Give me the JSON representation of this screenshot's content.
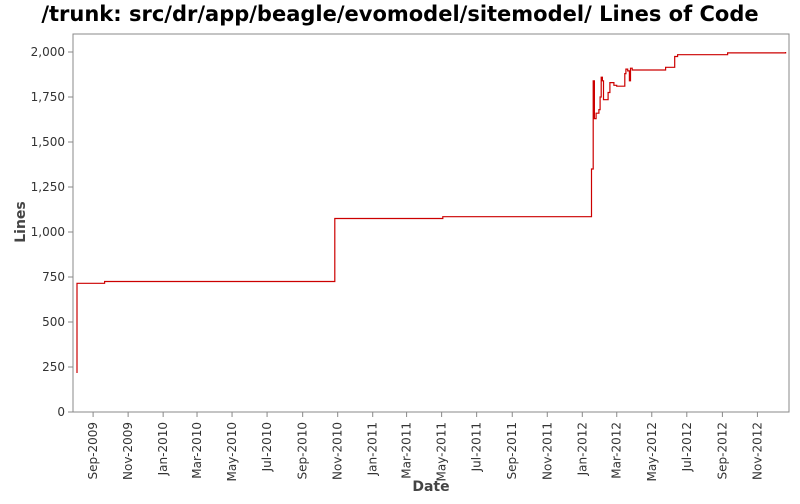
{
  "chart_data": {
    "type": "line",
    "title": "/trunk: src/dr/app/beagle/evomodel/sitemodel/ Lines of Code",
    "xlabel": "Date",
    "ylabel": "Lines",
    "ylim": [
      0,
      2100
    ],
    "xlim": [
      "2009-07-28",
      "2012-12-26"
    ],
    "y_ticks": [
      {
        "value": 0,
        "label": "0"
      },
      {
        "value": 250,
        "label": "250"
      },
      {
        "value": 500,
        "label": "500"
      },
      {
        "value": 750,
        "label": "750"
      },
      {
        "value": 1000,
        "label": "1,000"
      },
      {
        "value": 1250,
        "label": "1,250"
      },
      {
        "value": 1500,
        "label": "1,500"
      },
      {
        "value": 1750,
        "label": "1,750"
      },
      {
        "value": 2000,
        "label": "2,000"
      }
    ],
    "x_ticks": [
      {
        "date": "2009-09-01",
        "label": "Sep-2009"
      },
      {
        "date": "2009-11-01",
        "label": "Nov-2009"
      },
      {
        "date": "2010-01-01",
        "label": "Jan-2010"
      },
      {
        "date": "2010-03-01",
        "label": "Mar-2010"
      },
      {
        "date": "2010-05-01",
        "label": "May-2010"
      },
      {
        "date": "2010-07-01",
        "label": "Jul-2010"
      },
      {
        "date": "2010-09-01",
        "label": "Sep-2010"
      },
      {
        "date": "2010-11-01",
        "label": "Nov-2010"
      },
      {
        "date": "2011-01-01",
        "label": "Jan-2011"
      },
      {
        "date": "2011-03-01",
        "label": "Mar-2011"
      },
      {
        "date": "2011-05-01",
        "label": "May-2011"
      },
      {
        "date": "2011-07-01",
        "label": "Jul-2011"
      },
      {
        "date": "2011-09-01",
        "label": "Sep-2011"
      },
      {
        "date": "2011-11-01",
        "label": "Nov-2011"
      },
      {
        "date": "2012-01-01",
        "label": "Jan-2012"
      },
      {
        "date": "2012-03-01",
        "label": "Mar-2012"
      },
      {
        "date": "2012-05-01",
        "label": "May-2012"
      },
      {
        "date": "2012-07-01",
        "label": "Jul-2012"
      },
      {
        "date": "2012-09-01",
        "label": "Sep-2012"
      },
      {
        "date": "2012-11-01",
        "label": "Nov-2012"
      }
    ],
    "grid": false,
    "series": [
      {
        "color": "#cc0000",
        "step": true,
        "points": [
          [
            "2009-08-03",
            220
          ],
          [
            "2009-08-04",
            715
          ],
          [
            "2009-09-21",
            725
          ],
          [
            "2010-10-27",
            1075
          ],
          [
            "2011-05-03",
            1085
          ],
          [
            "2012-01-17",
            1350
          ],
          [
            "2012-01-20",
            1840
          ],
          [
            "2012-01-22",
            1630
          ],
          [
            "2012-01-25",
            1660
          ],
          [
            "2012-01-30",
            1680
          ],
          [
            "2012-02-01",
            1750
          ],
          [
            "2012-02-03",
            1860
          ],
          [
            "2012-02-05",
            1840
          ],
          [
            "2012-02-07",
            1735
          ],
          [
            "2012-02-15",
            1775
          ],
          [
            "2012-02-18",
            1830
          ],
          [
            "2012-02-25",
            1815
          ],
          [
            "2012-03-01",
            1810
          ],
          [
            "2012-03-15",
            1880
          ],
          [
            "2012-03-17",
            1905
          ],
          [
            "2012-03-20",
            1895
          ],
          [
            "2012-03-23",
            1840
          ],
          [
            "2012-03-25",
            1910
          ],
          [
            "2012-03-28",
            1900
          ],
          [
            "2012-05-25",
            1915
          ],
          [
            "2012-06-10",
            1975
          ],
          [
            "2012-06-15",
            1985
          ],
          [
            "2012-09-10",
            1995
          ],
          [
            "2012-12-20",
            2000
          ]
        ]
      }
    ]
  }
}
